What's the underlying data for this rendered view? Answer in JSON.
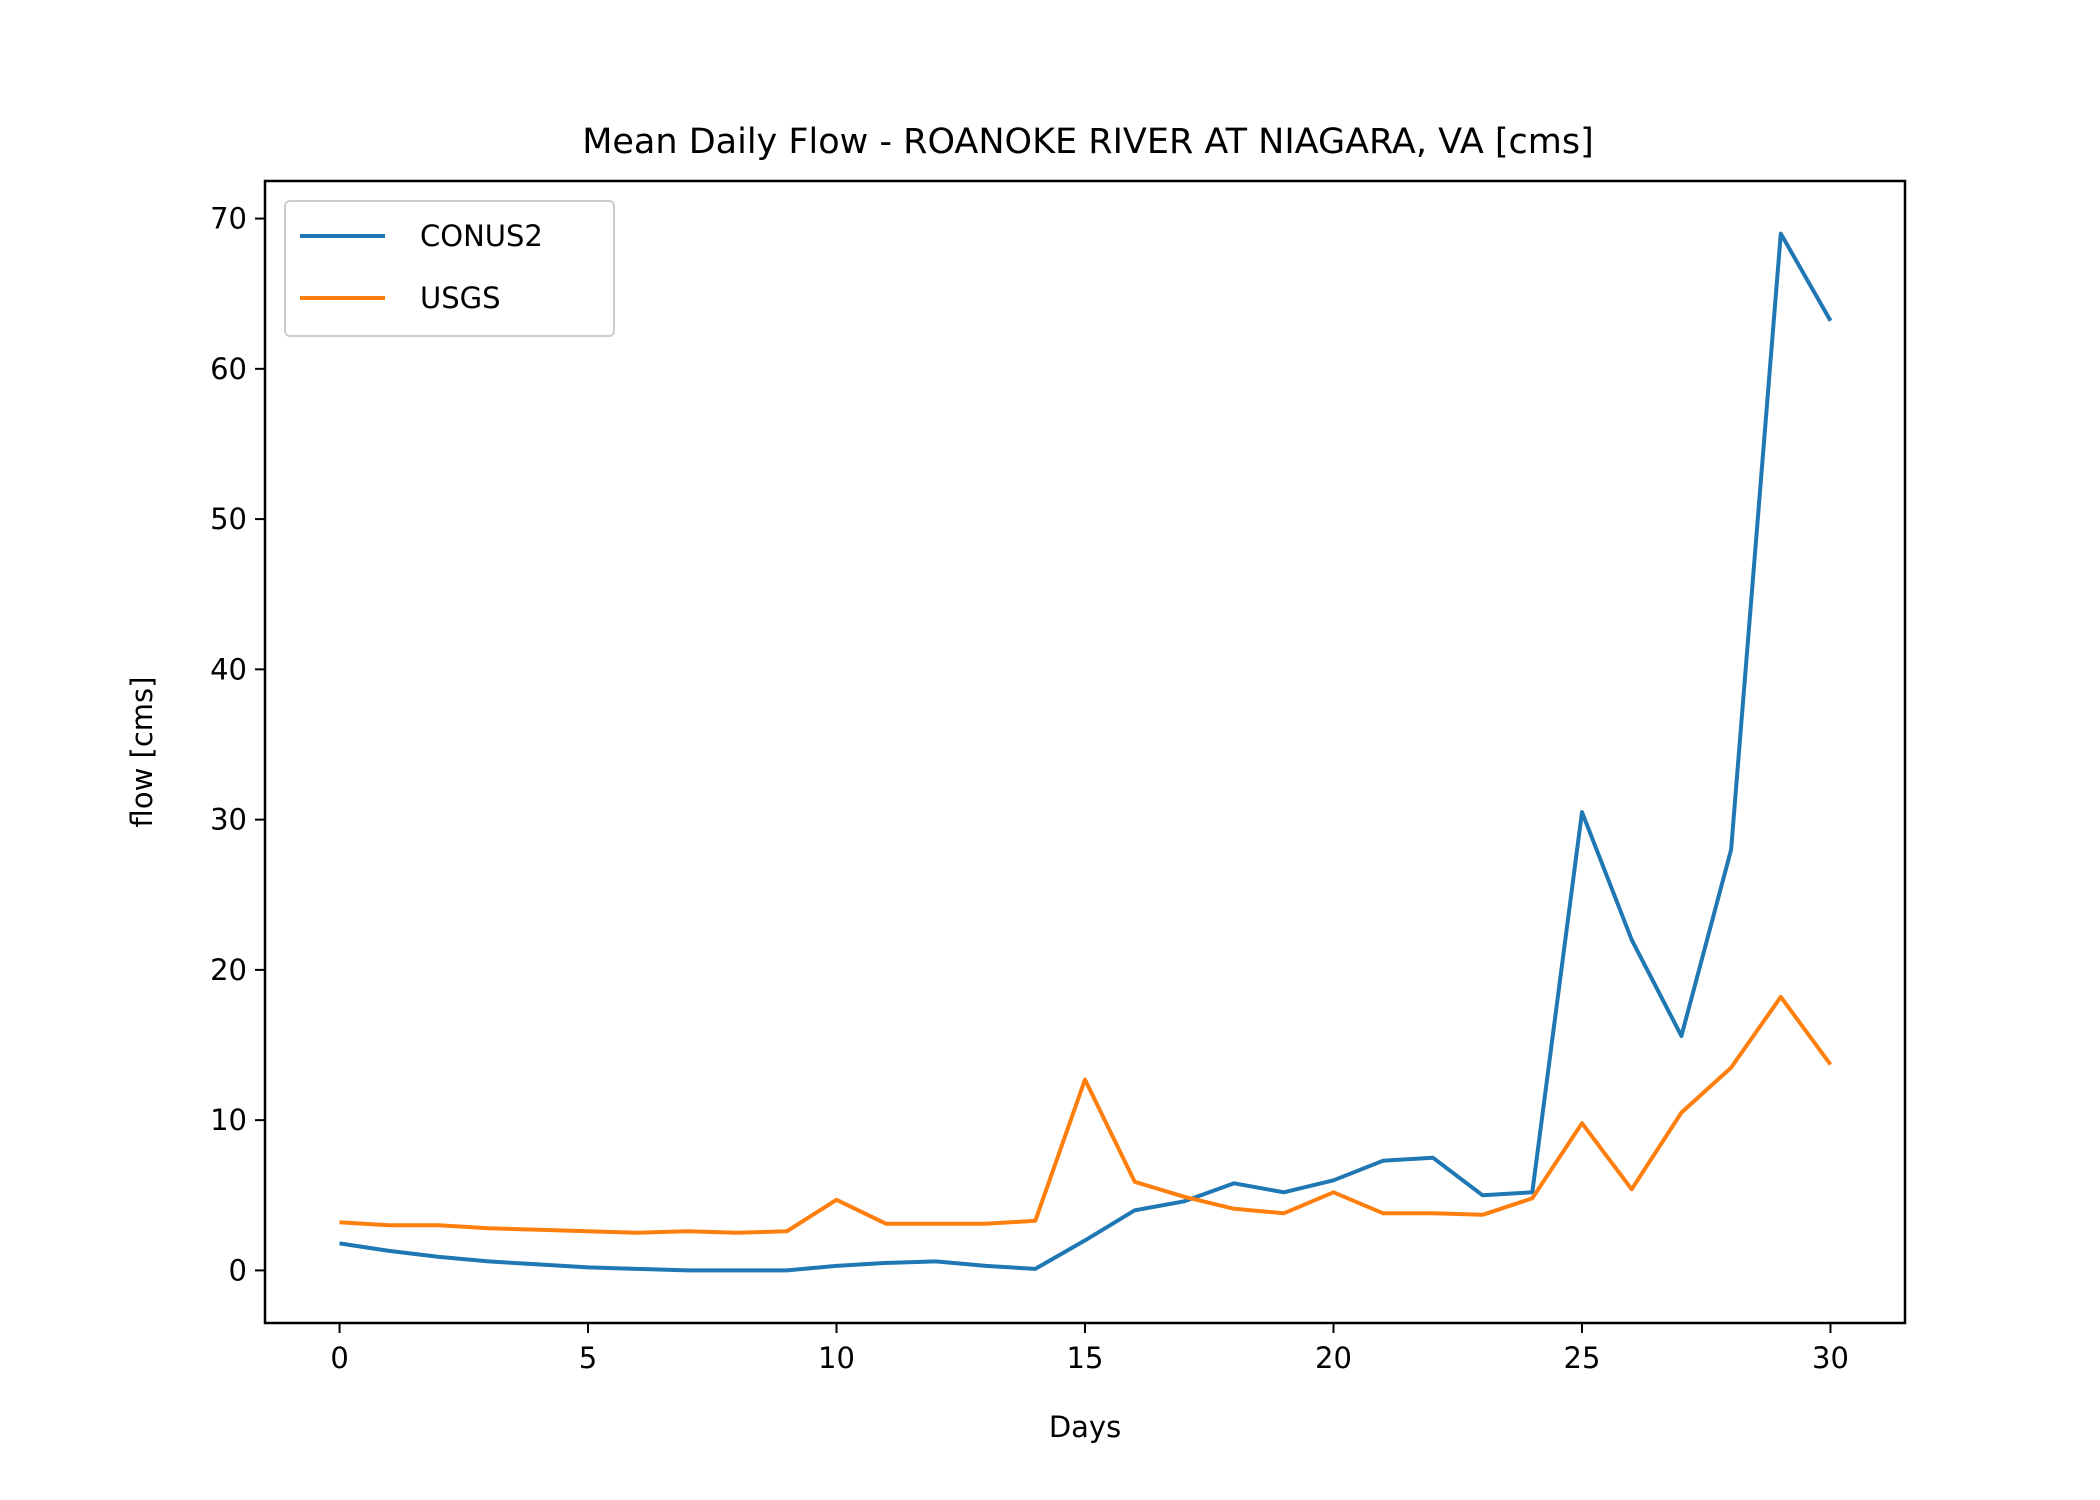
{
  "chart_data": {
    "type": "line",
    "title": "Mean Daily Flow - ROANOKE RIVER AT NIAGARA, VA [cms]",
    "xlabel": "Days",
    "ylabel": "flow [cms]",
    "xlim": [
      -1.5,
      31.5
    ],
    "ylim": [
      -3.5,
      72.5
    ],
    "xticks": [
      0,
      5,
      10,
      15,
      20,
      25,
      30
    ],
    "yticks": [
      0,
      10,
      20,
      30,
      40,
      50,
      60,
      70
    ],
    "grid": false,
    "legend_position": "top-left",
    "x": [
      0,
      1,
      2,
      3,
      4,
      5,
      6,
      7,
      8,
      9,
      10,
      11,
      12,
      13,
      14,
      15,
      16,
      17,
      18,
      19,
      20,
      21,
      22,
      23,
      24,
      25,
      26,
      27,
      28,
      29,
      30
    ],
    "series": [
      {
        "name": "CONUS2",
        "color": "#1f77b4",
        "values": [
          1.8,
          1.3,
          0.9,
          0.6,
          0.4,
          0.2,
          0.1,
          0.0,
          0.0,
          0.0,
          0.3,
          0.5,
          0.6,
          0.3,
          0.1,
          2.0,
          4.0,
          4.6,
          5.8,
          5.2,
          6.0,
          7.3,
          7.5,
          5.0,
          5.2,
          30.5,
          22.0,
          15.6,
          28.0,
          69.0,
          63.2
        ]
      },
      {
        "name": "USGS",
        "color": "#ff7f0e",
        "values": [
          3.2,
          3.0,
          3.0,
          2.8,
          2.7,
          2.6,
          2.5,
          2.6,
          2.5,
          2.6,
          4.7,
          3.1,
          3.1,
          3.1,
          3.3,
          12.7,
          5.9,
          4.9,
          4.1,
          3.8,
          5.2,
          3.8,
          3.8,
          3.7,
          4.8,
          9.8,
          5.4,
          10.5,
          13.5,
          18.2,
          13.7
        ]
      }
    ]
  }
}
